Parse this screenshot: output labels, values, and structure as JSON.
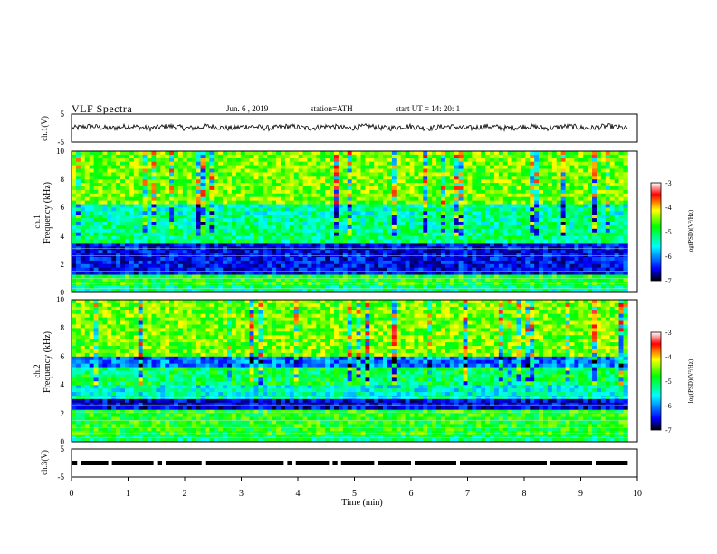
{
  "header": {
    "title": "VLF Spectra",
    "date": "Jun. 6 , 2019",
    "station": "station=ATH",
    "start": "start UT = 14: 20: 1"
  },
  "colorscale": {
    "stops": [
      "#000000",
      "#0000ff",
      "#00ffff",
      "#00ff00",
      "#ffff00",
      "#ff0000",
      "#ffffff"
    ],
    "ticks": [
      "-3",
      "-4",
      "-5",
      "-6",
      "-7"
    ],
    "label": "log(PSD)(V²/Hz)"
  },
  "chart_data": [
    {
      "type": "line",
      "panel": "ch1-waveform",
      "ylabel": "ch.1(V)",
      "ylim": [
        -5,
        5
      ],
      "y_ticks": [
        "5",
        "-5"
      ],
      "xlim": [
        0,
        10
      ],
      "series_color": "#000000",
      "approx_level": 0.3,
      "approx_noise": 1.0
    },
    {
      "type": "heatmap",
      "panel": "ch1-spectrogram",
      "ylabel": "ch.1",
      "ylabel2": "Frequency (kHz)",
      "ylim": [
        0,
        10
      ],
      "y_ticks": [
        "0",
        "2",
        "4",
        "6",
        "8",
        "10"
      ],
      "xlim": [
        0,
        9.83
      ],
      "zlim": [
        -7,
        -3
      ],
      "frequency_bands": [
        {
          "from": 0,
          "to": 0.5,
          "level": -5.4
        },
        {
          "from": 0.5,
          "to": 1.3,
          "level": -5.0
        },
        {
          "from": 1.3,
          "to": 3.5,
          "level": -6.6
        },
        {
          "from": 3.5,
          "to": 4.2,
          "level": -5.3
        },
        {
          "from": 4.2,
          "to": 5.4,
          "level": -5.4
        },
        {
          "from": 5.4,
          "to": 6.2,
          "level": -5.5
        },
        {
          "from": 6.2,
          "to": 10,
          "level": -4.7
        }
      ]
    },
    {
      "type": "heatmap",
      "panel": "ch2-spectrogram",
      "ylabel": "ch.2",
      "ylabel2": "Frequency (kHz)",
      "ylim": [
        0,
        10
      ],
      "y_ticks": [
        "0",
        "2",
        "4",
        "6",
        "8",
        "10"
      ],
      "xlim": [
        0,
        9.83
      ],
      "zlim": [
        -7,
        -3
      ],
      "frequency_bands": [
        {
          "from": 0,
          "to": 0.5,
          "level": -5.3
        },
        {
          "from": 0.5,
          "to": 2.2,
          "level": -5.0
        },
        {
          "from": 2.2,
          "to": 3.0,
          "level": -6.7
        },
        {
          "from": 3.0,
          "to": 4.0,
          "level": -5.6
        },
        {
          "from": 4.0,
          "to": 5.3,
          "level": -5.2
        },
        {
          "from": 5.3,
          "to": 6.0,
          "level": -6.2
        },
        {
          "from": 6.0,
          "to": 10,
          "level": -4.7
        }
      ]
    },
    {
      "type": "line",
      "panel": "ch3-timing",
      "ylabel": "ch.3(V)",
      "ylim": [
        -5,
        5
      ],
      "y_ticks": [
        "5",
        "-5"
      ],
      "xlim": [
        0,
        10
      ],
      "xlabel": "Time (min)",
      "x_ticks": [
        "0",
        "1",
        "2",
        "3",
        "4",
        "5",
        "6",
        "7",
        "8",
        "9",
        "10"
      ],
      "level": 0,
      "signal_end": 9.83,
      "gaps": [
        0.1,
        0.65,
        1.45,
        1.6,
        2.3,
        3.75,
        3.9,
        4.55,
        4.7,
        5.35,
        6.0,
        6.8,
        8.4,
        9.2
      ]
    }
  ]
}
